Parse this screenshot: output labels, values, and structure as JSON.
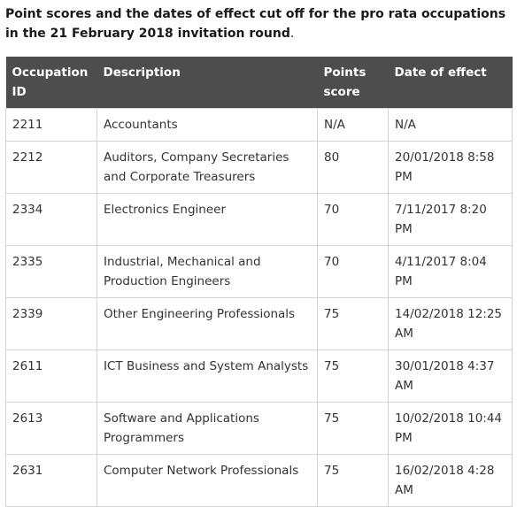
{
  "caption": {
    "text": "Point scores and the dates of effect cut off for the pro rata occupations in the 21 February 2018 invitation round",
    "trail": "."
  },
  "table": {
    "headers": [
      "Occupation ID",
      "Description",
      "Points score",
      "Date of effect"
    ],
    "rows": [
      [
        "2211",
        "Accountants",
        "N/A",
        "N/A"
      ],
      [
        "2212",
        "Auditors, Company Secretaries and Corporate Treasurers",
        "80",
        "20/01/2018 8:58 PM"
      ],
      [
        "2334",
        "Electronics Engineer",
        "70",
        "7/11/2017 8:20 PM"
      ],
      [
        "2335",
        "Industrial, Mechanical and Production Engineers",
        "70",
        "4/11/2017  8:04 PM"
      ],
      [
        "2339",
        "Other Engineering Professionals",
        "75",
        "14/02/2018  12:25 AM"
      ],
      [
        "2611",
        "ICT Business and System Analysts",
        "75",
        "30/01/2018  4:37 AM"
      ],
      [
        "2613",
        "Software and Applications Programmers",
        "75",
        "10/02/2018  10:44 PM"
      ],
      [
        "2631",
        "Computer Network Professionals",
        "75",
        "16/02/2018  4:28 AM"
      ]
    ]
  },
  "colors": {
    "header_bg": "#4d4d4d",
    "header_text": "#ffffff",
    "border": "#d4d4d4",
    "body_text": "#333333"
  }
}
